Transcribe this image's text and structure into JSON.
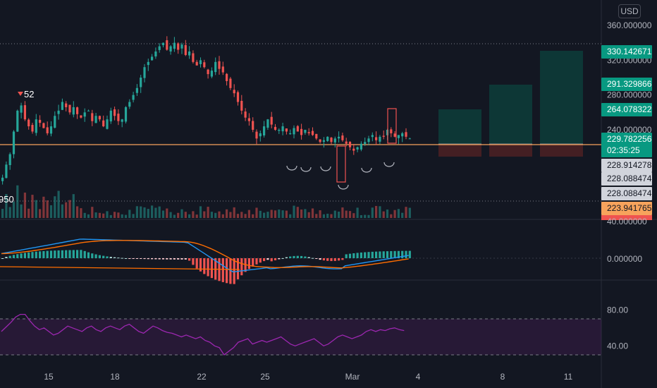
{
  "currency": "USD",
  "price_axis": {
    "labels": [
      "360.000000",
      "320.000000",
      "280.000000",
      "240.000000"
    ],
    "tags": [
      {
        "text": "330.142671",
        "bg": "#089981",
        "fg": "#ffffff"
      },
      {
        "text": "291.329866",
        "bg": "#089981",
        "fg": "#ffffff"
      },
      {
        "text": "264.078322",
        "bg": "#089981",
        "fg": "#ffffff"
      },
      {
        "text": "229.782256",
        "bg": "#089981",
        "fg": "#ffffff"
      },
      {
        "text": "02:35:25",
        "bg": "#089981",
        "fg": "#ffffff"
      },
      {
        "text": "228.914278",
        "bg": "#d1d4dc",
        "fg": "#131722"
      },
      {
        "text": "228.088474",
        "bg": "#d1d4dc",
        "fg": "#131722"
      },
      {
        "text": "228.088474",
        "bg": "#d1d4dc",
        "fg": "#131722"
      },
      {
        "text": "223.941765",
        "bg": "#f7a35c",
        "fg": "#131722"
      }
    ]
  },
  "macd_axis": {
    "labels": [
      "40.000000",
      "0.000000"
    ]
  },
  "rsi_axis": {
    "labels": [
      "80.00",
      "40.00"
    ]
  },
  "date_axis": {
    "labels": [
      "15",
      "18",
      "22",
      "25",
      "Mar",
      "4",
      "8",
      "11"
    ]
  },
  "annotations": {
    "high_marker": "52",
    "low_marker": "950"
  },
  "colors": {
    "background": "#131722",
    "up": "#26a69a",
    "down": "#ef5350",
    "macd": "#2196f3",
    "signal": "#ff6d00",
    "rsi": "#9c27b0",
    "horizontal_line": "#f7a35c",
    "position_profit": "#0d3d3a",
    "position_loss": "#4a2024"
  },
  "chart_data": {
    "type": "candlestick",
    "currency": "USD",
    "last_price": 229.782256,
    "countdown": "02:35:25",
    "price_levels": [
      330.142671,
      291.329866,
      264.078322,
      228.914278,
      228.088474,
      228.088474,
      223.941765
    ],
    "price_range": [
      170,
      370
    ],
    "candles_close": [
      185,
      200,
      212,
      238,
      262,
      268,
      252,
      244,
      238,
      252,
      248,
      242,
      236,
      244,
      256,
      262,
      272,
      266,
      260,
      266,
      258,
      254,
      260,
      262,
      250,
      256,
      252,
      244,
      252,
      262,
      256,
      250,
      252,
      266,
      272,
      280,
      288,
      300,
      312,
      318,
      324,
      330,
      336,
      340,
      332,
      336,
      340,
      332,
      338,
      326,
      330,
      318,
      314,
      320,
      312,
      304,
      308,
      318,
      310,
      306,
      296,
      288,
      282,
      272,
      262,
      254,
      250,
      240,
      230,
      236,
      244,
      252,
      246,
      240,
      240,
      244,
      238,
      236,
      242,
      238,
      234,
      240,
      236,
      234,
      230,
      226,
      228,
      232,
      226,
      230,
      232,
      228,
      224,
      220,
      216,
      220,
      224,
      226,
      230,
      234,
      228,
      232,
      232,
      240,
      236,
      232,
      234,
      236,
      232,
      230
    ],
    "macd": {
      "range": [
        -30,
        50
      ],
      "labels_at": [
        40,
        0
      ]
    },
    "rsi": {
      "range": [
        20,
        100
      ],
      "bands": [
        70,
        30
      ],
      "labels_at": [
        80,
        40
      ],
      "values": [
        56,
        61,
        66,
        72,
        75,
        75,
        68,
        62,
        58,
        60,
        56,
        52,
        54,
        58,
        62,
        60,
        58,
        56,
        60,
        62,
        58,
        56,
        60,
        62,
        60,
        58,
        62,
        64,
        60,
        56,
        54,
        58,
        62,
        60,
        57,
        55,
        54,
        52,
        50,
        52,
        50,
        48,
        50,
        46,
        44,
        40,
        38,
        30,
        34,
        38,
        44,
        46,
        48,
        42,
        44,
        46,
        44,
        46,
        48,
        50,
        46,
        42,
        40,
        42,
        44,
        46,
        48,
        44,
        40,
        42,
        46,
        50,
        52,
        50,
        48,
        50,
        52,
        56,
        58,
        56,
        58,
        57,
        59,
        60,
        58,
        57
      ]
    }
  }
}
